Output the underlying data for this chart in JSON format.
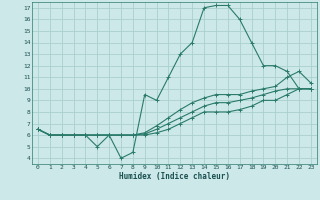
{
  "xlabel": "Humidex (Indice chaleur)",
  "xlim": [
    -0.5,
    23.5
  ],
  "ylim": [
    3.5,
    17.5
  ],
  "xticks": [
    0,
    1,
    2,
    3,
    4,
    5,
    6,
    7,
    8,
    9,
    10,
    11,
    12,
    13,
    14,
    15,
    16,
    17,
    18,
    19,
    20,
    21,
    22,
    23
  ],
  "yticks": [
    4,
    5,
    6,
    7,
    8,
    9,
    10,
    11,
    12,
    13,
    14,
    15,
    16,
    17
  ],
  "bg_color": "#cce8e8",
  "grid_color": "#aacfcf",
  "line_color": "#2a7a6a",
  "lines": [
    {
      "x": [
        0,
        1,
        2,
        3,
        4,
        5,
        6,
        7,
        8,
        9,
        10,
        11,
        12,
        13,
        14,
        15,
        16,
        17,
        18,
        19,
        20,
        21,
        22,
        23
      ],
      "y": [
        6.5,
        6,
        6,
        6,
        6,
        5,
        6,
        4,
        4.5,
        9.5,
        9,
        11,
        13,
        14,
        17,
        17.2,
        17.2,
        16,
        14,
        12,
        12,
        11.5,
        10,
        10
      ]
    },
    {
      "x": [
        0,
        1,
        2,
        3,
        4,
        5,
        6,
        7,
        8,
        9,
        10,
        11,
        12,
        13,
        14,
        15,
        16,
        17,
        18,
        19,
        20,
        21,
        22,
        23
      ],
      "y": [
        6.5,
        6,
        6,
        6,
        6,
        6,
        6,
        6,
        6,
        6.2,
        6.8,
        7.5,
        8.2,
        8.8,
        9.2,
        9.5,
        9.5,
        9.5,
        9.8,
        10,
        10.2,
        11,
        11.5,
        10.5
      ]
    },
    {
      "x": [
        0,
        1,
        2,
        3,
        4,
        5,
        6,
        7,
        8,
        9,
        10,
        11,
        12,
        13,
        14,
        15,
        16,
        17,
        18,
        19,
        20,
        21,
        22,
        23
      ],
      "y": [
        6.5,
        6,
        6,
        6,
        6,
        6,
        6,
        6,
        6,
        6.1,
        6.5,
        7,
        7.5,
        8,
        8.5,
        8.8,
        8.8,
        9,
        9.2,
        9.5,
        9.8,
        10,
        10,
        10
      ]
    },
    {
      "x": [
        0,
        1,
        2,
        3,
        4,
        5,
        6,
        7,
        8,
        9,
        10,
        11,
        12,
        13,
        14,
        15,
        16,
        17,
        18,
        19,
        20,
        21,
        22,
        23
      ],
      "y": [
        6.5,
        6,
        6,
        6,
        6,
        6,
        6,
        6,
        6,
        6.0,
        6.2,
        6.5,
        7,
        7.5,
        8,
        8,
        8,
        8.2,
        8.5,
        9,
        9,
        9.5,
        10,
        10
      ]
    }
  ]
}
